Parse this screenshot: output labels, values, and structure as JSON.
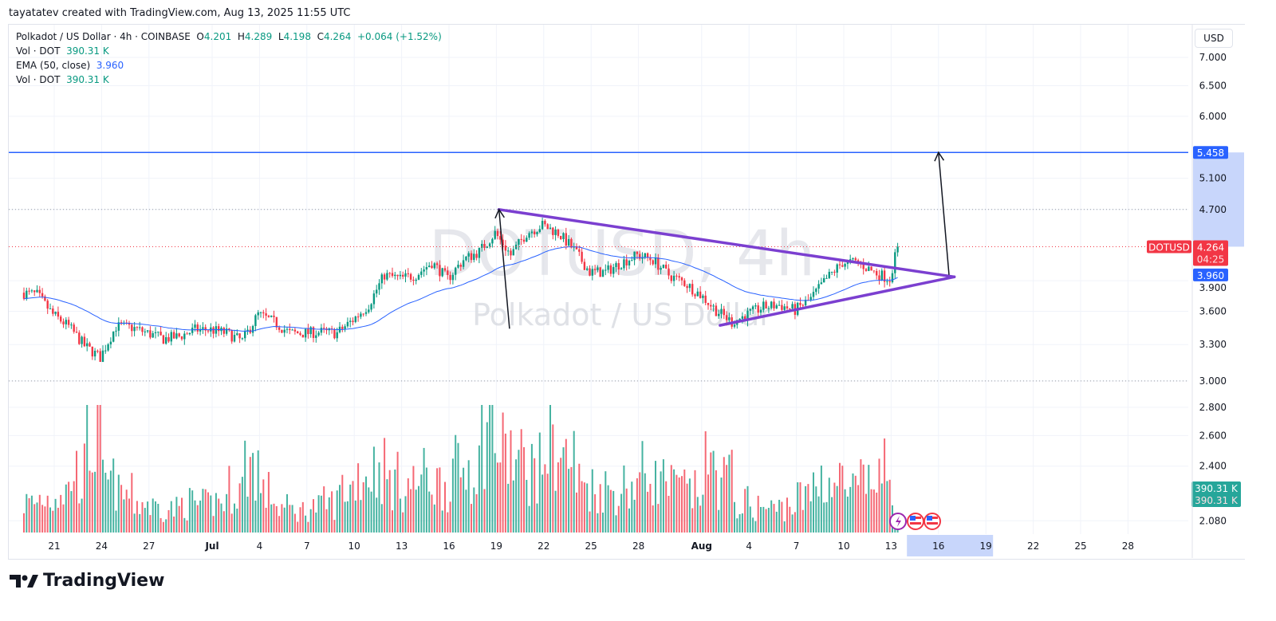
{
  "credit": "tayatatev created with TradingView.com, Aug 13, 2025 11:55 UTC",
  "legend": {
    "symbol": "Polkadot / US Dollar · 4h · COINBASE",
    "o_label": "O",
    "o": "4.201",
    "h_label": "H",
    "h": "4.289",
    "l_label": "L",
    "l": "4.198",
    "c_label": "C",
    "c": "4.264",
    "change": "+0.064 (+1.52%)",
    "vol_label": "Vol · DOT",
    "vol": "390.31 K",
    "ema_label": "EMA (50, close)",
    "ema": "3.960",
    "vol2_label": "Vol · DOT",
    "vol2": "390.31 K"
  },
  "currency_button": "USD",
  "watermark": {
    "title": "DOTUSD, 4h",
    "subtitle": "Polkadot / US Dollar"
  },
  "logo_text": "TradingView",
  "colors": {
    "up": "#089981",
    "down": "#f23645",
    "ema": "#2962ff",
    "target_line": "#2962ff",
    "triangle": "#7b3fd0",
    "arrow": "#131722"
  },
  "price_axis": {
    "scale": "log",
    "ticks": [
      "7.000",
      "6.500",
      "6.000",
      "5.100",
      "4.700",
      "3.900",
      "3.600",
      "3.300",
      "3.000",
      "2.800",
      "2.600",
      "2.400",
      "2.080"
    ]
  },
  "price_labels": {
    "target": "5.458",
    "symbol_tag": "DOTUSD",
    "last": "4.264",
    "countdown": "04:25",
    "ema": "3.960",
    "vol1": "390.31 K",
    "vol2": "390.31 K"
  },
  "time_axis": {
    "ticks": [
      [
        "21",
        "2025-06-21"
      ],
      [
        "24",
        "2025-06-24"
      ],
      [
        "27",
        "2025-06-27"
      ],
      [
        "Jul",
        "2025-07-01"
      ],
      [
        "4",
        "2025-07-04"
      ],
      [
        "7",
        "2025-07-07"
      ],
      [
        "10",
        "2025-07-10"
      ],
      [
        "13",
        "2025-07-13"
      ],
      [
        "16",
        "2025-07-16"
      ],
      [
        "19",
        "2025-07-19"
      ],
      [
        "22",
        "2025-07-22"
      ],
      [
        "25",
        "2025-07-25"
      ],
      [
        "28",
        "2025-07-28"
      ],
      [
        "Aug",
        "2025-08-01"
      ],
      [
        "4",
        "2025-08-04"
      ],
      [
        "7",
        "2025-08-07"
      ],
      [
        "10",
        "2025-08-10"
      ],
      [
        "13",
        "2025-08-13"
      ],
      [
        "16",
        "2025-08-16"
      ],
      [
        "19",
        "2025-08-19"
      ],
      [
        "22",
        "2025-08-22"
      ],
      [
        "25",
        "2025-08-25"
      ],
      [
        "28",
        "2025-08-28"
      ]
    ],
    "highlight": [
      "2025-08-14",
      "2025-08-19"
    ]
  },
  "chart_data": {
    "type": "candlestick",
    "title": "Polkadot / US Dollar · 4h · COINBASE",
    "interval": "4h",
    "ylim": [
      2.0,
      7.2
    ],
    "daily_close": [
      [
        "2025-06-19",
        3.76
      ],
      [
        "2025-06-20",
        3.57
      ],
      [
        "2025-06-21",
        3.46
      ],
      [
        "2025-06-22",
        3.29
      ],
      [
        "2025-06-23",
        3.19
      ],
      [
        "2025-06-24",
        3.46
      ],
      [
        "2025-06-25",
        3.45
      ],
      [
        "2025-06-26",
        3.4
      ],
      [
        "2025-06-27",
        3.35
      ],
      [
        "2025-06-28",
        3.37
      ],
      [
        "2025-06-29",
        3.43
      ],
      [
        "2025-06-30",
        3.43
      ],
      [
        "2025-07-01",
        3.4
      ],
      [
        "2025-07-02",
        3.33
      ],
      [
        "2025-07-03",
        3.57
      ],
      [
        "2025-07-04",
        3.5
      ],
      [
        "2025-07-05",
        3.4
      ],
      [
        "2025-07-06",
        3.4
      ],
      [
        "2025-07-07",
        3.41
      ],
      [
        "2025-07-08",
        3.4
      ],
      [
        "2025-07-09",
        3.52
      ],
      [
        "2025-07-10",
        3.66
      ],
      [
        "2025-07-11",
        3.96
      ],
      [
        "2025-07-12",
        3.92
      ],
      [
        "2025-07-13",
        3.96
      ],
      [
        "2025-07-14",
        4.09
      ],
      [
        "2025-07-15",
        3.92
      ],
      [
        "2025-07-16",
        4.12
      ],
      [
        "2025-07-17",
        4.21
      ],
      [
        "2025-07-18",
        4.42
      ],
      [
        "2025-07-19",
        4.17
      ],
      [
        "2025-07-20",
        4.42
      ],
      [
        "2025-07-21",
        4.51
      ],
      [
        "2025-07-22",
        4.42
      ],
      [
        "2025-07-23",
        4.23
      ],
      [
        "2025-07-24",
        3.99
      ],
      [
        "2025-07-25",
        3.99
      ],
      [
        "2025-07-26",
        4.09
      ],
      [
        "2025-07-27",
        4.17
      ],
      [
        "2025-07-28",
        4.12
      ],
      [
        "2025-07-29",
        3.96
      ],
      [
        "2025-07-30",
        3.88
      ],
      [
        "2025-07-31",
        3.76
      ],
      [
        "2025-08-01",
        3.61
      ],
      [
        "2025-08-02",
        3.5
      ],
      [
        "2025-08-03",
        3.57
      ],
      [
        "2025-08-04",
        3.64
      ],
      [
        "2025-08-05",
        3.66
      ],
      [
        "2025-08-06",
        3.61
      ],
      [
        "2025-08-07",
        3.72
      ],
      [
        "2025-08-08",
        3.92
      ],
      [
        "2025-08-09",
        4.09
      ],
      [
        "2025-08-10",
        4.09
      ],
      [
        "2025-08-11",
        3.99
      ],
      [
        "2025-08-12",
        3.92
      ],
      [
        "2025-08-13",
        4.264
      ]
    ],
    "daily_volume_k": [
      300,
      350,
      420,
      600,
      900,
      500,
      380,
      300,
      260,
      240,
      300,
      280,
      320,
      450,
      700,
      400,
      250,
      220,
      260,
      300,
      450,
      600,
      650,
      520,
      480,
      560,
      500,
      620,
      700,
      1100,
      800,
      700,
      650,
      900,
      750,
      500,
      450,
      420,
      480,
      600,
      520,
      450,
      400,
      650,
      550,
      300,
      260,
      240,
      280,
      350,
      550,
      500,
      420,
      480,
      600,
      390.31
    ],
    "last_candle": {
      "open": 4.201,
      "high": 4.289,
      "low": 4.198,
      "close": 4.264,
      "volume": "390.31 K"
    },
    "ema": {
      "period": 50,
      "source": "close",
      "last": 3.96
    },
    "drawings": {
      "target_line": 5.458,
      "dotted_levels": [
        4.7,
        3.0
      ],
      "triangle_upper": [
        [
          "2025-07-19T04:00",
          4.7
        ],
        [
          "2025-08-17T00:00",
          3.94
        ]
      ],
      "triangle_lower": [
        [
          "2025-08-02T04:00",
          3.47
        ],
        [
          "2025-08-17T00:00",
          3.94
        ]
      ],
      "arrows": [
        [
          [
            "2025-07-19T20:00",
            3.44
          ],
          [
            "2025-07-19T04:00",
            4.7
          ]
        ],
        [
          [
            "2025-08-16T16:00",
            3.96
          ],
          [
            "2025-08-16T00:00",
            5.458
          ]
        ]
      ]
    }
  }
}
